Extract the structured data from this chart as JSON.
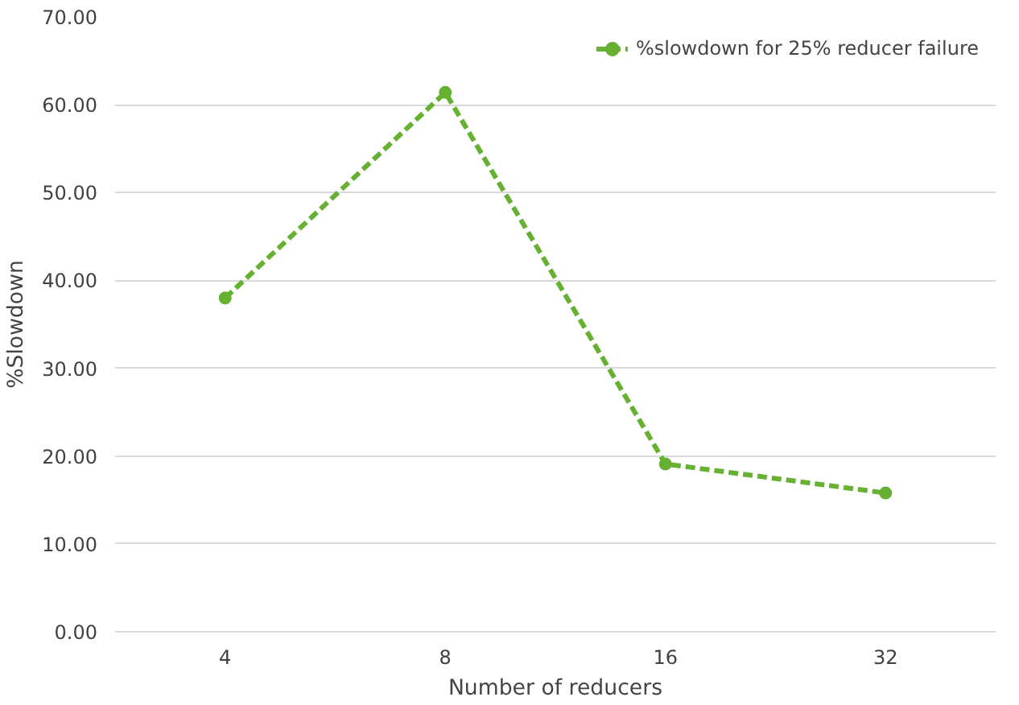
{
  "chart_data": {
    "type": "line",
    "xlabel": "Number of reducers",
    "ylabel": "%Slowdown",
    "categories": [
      "4",
      "8",
      "16",
      "32"
    ],
    "series": [
      {
        "name": "%slowdown for 25% reducer failure",
        "color": "#66b032",
        "values": [
          38.0,
          61.4,
          19.1,
          15.8
        ]
      }
    ],
    "ylim": [
      0,
      70
    ],
    "yticks": [
      {
        "value": 0,
        "label": "0.00"
      },
      {
        "value": 10,
        "label": "10.00"
      },
      {
        "value": 20,
        "label": "20.00"
      },
      {
        "value": 30,
        "label": "30.00"
      },
      {
        "value": 40,
        "label": "40.00"
      },
      {
        "value": 50,
        "label": "50.00"
      },
      {
        "value": 60,
        "label": "60.00"
      },
      {
        "value": 70,
        "label": "70.00"
      }
    ],
    "grid": "y",
    "legend": "top right",
    "marker": "circle",
    "line_style": "dashed"
  }
}
